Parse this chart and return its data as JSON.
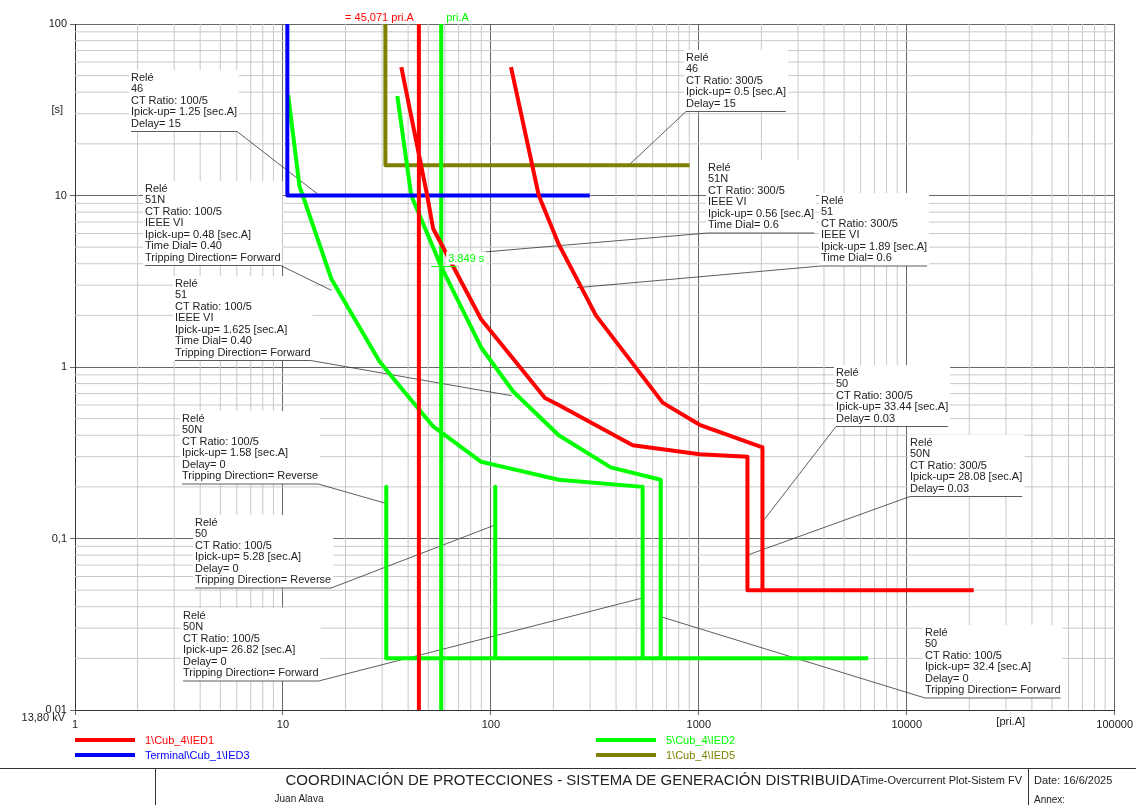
{
  "chart_data": {
    "type": "line",
    "title": "COORDINACIÓN DE PROTECCIONES - SISTEMA DE GENERACIÓN DISTRIBUIDA",
    "xlabel": "[pri.A]",
    "ylabel": "[s]",
    "log": "xy",
    "grid": true,
    "legend": "bottom",
    "marker": "none",
    "line_style": "solid",
    "xlim": [
      1,
      100000
    ],
    "xticks": [
      1,
      10,
      100,
      1000,
      10000,
      100000
    ],
    "ylim": [
      0.01,
      100
    ],
    "yticks": [
      {
        "value": 0.01,
        "label": "0,01"
      },
      {
        "value": 0.1,
        "label": "0,1"
      },
      1,
      10,
      100
    ],
    "series": [
      {
        "name": "1\\Cub_4\\IED1",
        "color": "#ff0000",
        "x": [
          37.1,
          49.4,
          52.8,
          89.8,
          182,
          212,
          481,
          1009,
          1714,
          1714,
          21000,
          null,
          125,
          170,
          212,
          320,
          670,
          1009,
          2024,
          2024,
          null,
          45.071,
          45.071
        ],
        "values": [
          56,
          10,
          6.4,
          1.9,
          0.66,
          0.6,
          0.35,
          0.31,
          0.3,
          0.05,
          0.05,
          null,
          56,
          10,
          5.2,
          2,
          0.62,
          0.46,
          0.34,
          0.05,
          null,
          100,
          0.01
        ]
      },
      {
        "name": "Terminal\\Cub_1\\IED3",
        "color": "#0000ff",
        "x": [
          10.5,
          10.5,
          299
        ],
        "values": [
          100,
          10,
          10
        ]
      },
      {
        "name": "5\\Cub_4\\IED2",
        "color": "#00ff00",
        "x": [
          10.6,
          12,
          17.1,
          29.1,
          37.9,
          52.8,
          89.8,
          212,
          537,
          537,
          null,
          35.5,
          41.4,
          57.7,
          89.8,
          128,
          212,
          377,
          656,
          656,
          null,
          31.4,
          31.4,
          6530,
          null,
          105,
          105,
          null,
          57.7,
          57.7
        ],
        "values": [
          38.5,
          11.4,
          3.26,
          1.08,
          0.73,
          0.45,
          0.28,
          0.22,
          0.2,
          0.02,
          null,
          38,
          10,
          3.849,
          1.3,
          0.72,
          0.4,
          0.26,
          0.22,
          0.02,
          null,
          0.2,
          0.02,
          0.02,
          null,
          0.2,
          0.02,
          null,
          100,
          0.01
        ]
      },
      {
        "name": "1\\Cub_4\\IED5",
        "color": "#808000",
        "x": [
          31.1,
          31.1,
          903
        ],
        "values": [
          100,
          15,
          15
        ]
      }
    ],
    "annotations": [
      {
        "text": "Relé\n46\nCT Ratio: 100/5\nIpick-up= 1.25 [sec.A]\nDelay= 15",
        "x": 15,
        "y": 10
      },
      {
        "text": "Relé\n51N\nCT Ratio: 100/5\nIEEE VI\nIpick-up= 0.48 [sec.A]\nTime Dial= 0.40\nTripping Direction= Forward",
        "x": 17.1,
        "y": 2.8
      },
      {
        "text": "Relé\n51\nCT Ratio: 100/5\nIEEE VI\nIpick-up= 1.625 [sec.A]\nTime Dial= 0.40\nTripping Direction= Forward",
        "x": 126,
        "y": 0.68
      },
      {
        "text": "Relé\n50N\nCT Ratio: 100/5\nIpick-up= 1.58 [sec.A]\nDelay= 0\nTripping Direction= Reverse",
        "x": 31.4,
        "y": 0.16
      },
      {
        "text": "Relé\n50\nCT Ratio: 100/5\nIpick-up= 5.28 [sec.A]\nDelay= 0\nTripping Direction= Reverse",
        "x": 105,
        "y": 0.12
      },
      {
        "text": "Relé\n50N\nCT Ratio: 100/5\nIpick-up= 26.82 [sec.A]\nDelay= 0\nTripping Direction= Forward",
        "x": 537,
        "y": 0.045
      },
      {
        "text": "Relé\n50\nCT Ratio: 100/5\nIpick-up= 32.4 [sec.A]\nDelay= 0\nTripping Direction= Forward",
        "x": 656,
        "y": 0.035
      },
      {
        "text": "Relé\n46\nCT Ratio: 300/5\nIpick-up= 0.5 [sec.A]\nDelay= 15",
        "x": 460,
        "y": 15
      },
      {
        "text": "Relé\n51N\nCT Ratio: 300/5\nIEEE VI\nIpick-up= 0.56 [sec.A]\nTime Dial= 0.6",
        "x": 63,
        "y": 4.5
      },
      {
        "text": "Relé\n51\nCT Ratio: 300/5\nIEEE VI\nIpick-up= 1.89 [sec.A]\nTime Dial= 0.6",
        "x": 259,
        "y": 2.9
      },
      {
        "text": "Relé\n50\nCT Ratio: 300/5\nIpick-up= 33.44 [sec.A]\nDelay= 0.03",
        "x": 2024,
        "y": 0.125
      },
      {
        "text": "Relé\n50N\nCT Ratio: 300/5\nIpick-up= 28.08 [sec.A]\nDelay= 0.03",
        "x": 1714,
        "y": 0.08
      },
      {
        "text": "3.849 s",
        "x": 57.7,
        "y": 3.849
      },
      {
        "text": "= 45,071 pri.A",
        "x": 45.071,
        "y": 100
      },
      {
        "text": "pri.A",
        "x": 57.7,
        "y": 100
      },
      "13,80 kV",
      "Juan Alava",
      "Time-Overcurrent Plot-Sistem FV",
      "Date: 16/6/2025",
      "Annex:"
    ]
  }
}
